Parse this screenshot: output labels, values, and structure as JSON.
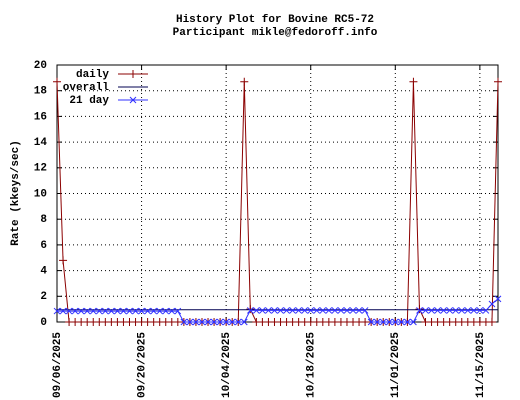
{
  "chart_data": {
    "type": "line",
    "title": "History Plot for Bovine RC5-72",
    "subtitle": "Participant mikle@fedoroff.info",
    "y_label": "Rate (kkeys/sec)",
    "xlim": [
      "09/06/2025",
      "11/18/2025"
    ],
    "xticks": [
      "09/06/2025",
      "09/20/2025",
      "10/04/2025",
      "10/18/2025",
      "11/01/2025",
      "11/15/2025"
    ],
    "ylim": [
      0,
      20
    ],
    "yticks": [
      0,
      2,
      4,
      6,
      8,
      10,
      12,
      14,
      16,
      18,
      20
    ],
    "grid": true,
    "legend": "top-left",
    "x": [
      "09/06/2025",
      "09/07/2025",
      "09/08/2025",
      "09/09/2025",
      "09/10/2025",
      "09/11/2025",
      "09/12/2025",
      "09/13/2025",
      "09/14/2025",
      "09/15/2025",
      "09/16/2025",
      "09/17/2025",
      "09/18/2025",
      "09/19/2025",
      "09/20/2025",
      "09/21/2025",
      "09/22/2025",
      "09/23/2025",
      "09/24/2025",
      "09/25/2025",
      "09/26/2025",
      "09/27/2025",
      "09/28/2025",
      "09/29/2025",
      "09/30/2025",
      "10/01/2025",
      "10/02/2025",
      "10/03/2025",
      "10/04/2025",
      "10/05/2025",
      "10/06/2025",
      "10/07/2025",
      "10/08/2025",
      "10/09/2025",
      "10/10/2025",
      "10/11/2025",
      "10/12/2025",
      "10/13/2025",
      "10/14/2025",
      "10/15/2025",
      "10/16/2025",
      "10/17/2025",
      "10/18/2025",
      "10/19/2025",
      "10/20/2025",
      "10/21/2025",
      "10/22/2025",
      "10/23/2025",
      "10/24/2025",
      "10/25/2025",
      "10/26/2025",
      "10/27/2025",
      "10/28/2025",
      "10/29/2025",
      "10/30/2025",
      "10/31/2025",
      "11/01/2025",
      "11/02/2025",
      "11/03/2025",
      "11/04/2025",
      "11/05/2025",
      "11/06/2025",
      "11/07/2025",
      "11/08/2025",
      "11/09/2025",
      "11/10/2025",
      "11/11/2025",
      "11/12/2025",
      "11/13/2025",
      "11/14/2025",
      "11/15/2025",
      "11/16/2025",
      "11/17/2025",
      "11/18/2025"
    ],
    "series": [
      {
        "name": "daily",
        "color": "#8b0000",
        "marker": "plus",
        "values": [
          18.7,
          4.8,
          0,
          0,
          0,
          0,
          0,
          0,
          0,
          0,
          0,
          0,
          0,
          0,
          0,
          0,
          0,
          0,
          0,
          0,
          0,
          0,
          0,
          0,
          0,
          0,
          0,
          0,
          0,
          0,
          0,
          18.7,
          1.0,
          0,
          0,
          0,
          0,
          0,
          0,
          0,
          0,
          0,
          0,
          0,
          0,
          0,
          0,
          0,
          0,
          0,
          0,
          0,
          0,
          0,
          0,
          0,
          0,
          0,
          0,
          18.7,
          1.0,
          0,
          0,
          0,
          0,
          0,
          0,
          0,
          0,
          0,
          0,
          0,
          0,
          18.7
        ]
      },
      {
        "name": "overall",
        "color": "#000050",
        "x": [
          "09/06/2025",
          "11/18/2025"
        ],
        "values": [
          0.95,
          0.95
        ]
      },
      {
        "name": "21 day",
        "color": "#3030ff",
        "marker": "cross",
        "values": [
          0.85,
          0.85,
          0.85,
          0.85,
          0.85,
          0.85,
          0.85,
          0.85,
          0.85,
          0.85,
          0.85,
          0.85,
          0.85,
          0.85,
          0.85,
          0.85,
          0.85,
          0.85,
          0.85,
          0.85,
          0.85,
          0,
          0,
          0,
          0,
          0,
          0,
          0,
          0,
          0,
          0,
          0,
          0.9,
          0.9,
          0.9,
          0.9,
          0.9,
          0.9,
          0.9,
          0.9,
          0.9,
          0.9,
          0.9,
          0.9,
          0.9,
          0.9,
          0.9,
          0.9,
          0.9,
          0.9,
          0.9,
          0.9,
          0,
          0,
          0,
          0,
          0,
          0,
          0,
          0,
          0.9,
          0.9,
          0.9,
          0.9,
          0.9,
          0.9,
          0.9,
          0.9,
          0.9,
          0.9,
          0.9,
          0.9,
          1.4,
          1.8
        ]
      }
    ]
  }
}
